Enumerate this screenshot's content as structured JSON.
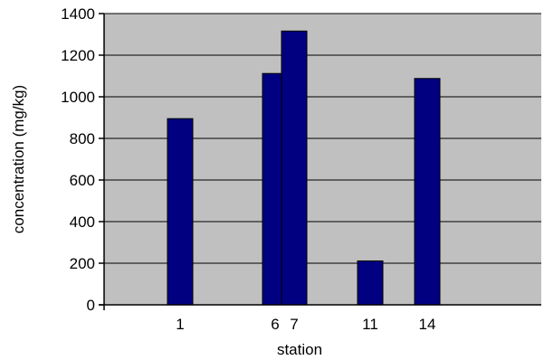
{
  "chart_data": {
    "type": "bar",
    "title": "",
    "xlabel": "station",
    "ylabel": "concentration (mg/kg)",
    "categories": [
      "1",
      "6",
      "7",
      "11",
      "14"
    ],
    "values": [
      895,
      1112,
      1316,
      211,
      1088
    ],
    "x_positions": [
      1,
      6,
      7,
      11,
      14
    ],
    "xlim": [
      -3,
      20
    ],
    "ylim": [
      0,
      1400
    ],
    "yticks": [
      0,
      200,
      400,
      600,
      800,
      1000,
      1200,
      1400
    ],
    "ytick_labels": [
      "0",
      "200",
      "400",
      "600",
      "800",
      "1000",
      "1200",
      "1400"
    ],
    "grid": true,
    "legend": "none",
    "colors": {
      "plot_background": "#c0c0c0",
      "bar_fill": "#000080",
      "bar_stroke": "#000000",
      "gridline": "#000000"
    }
  }
}
